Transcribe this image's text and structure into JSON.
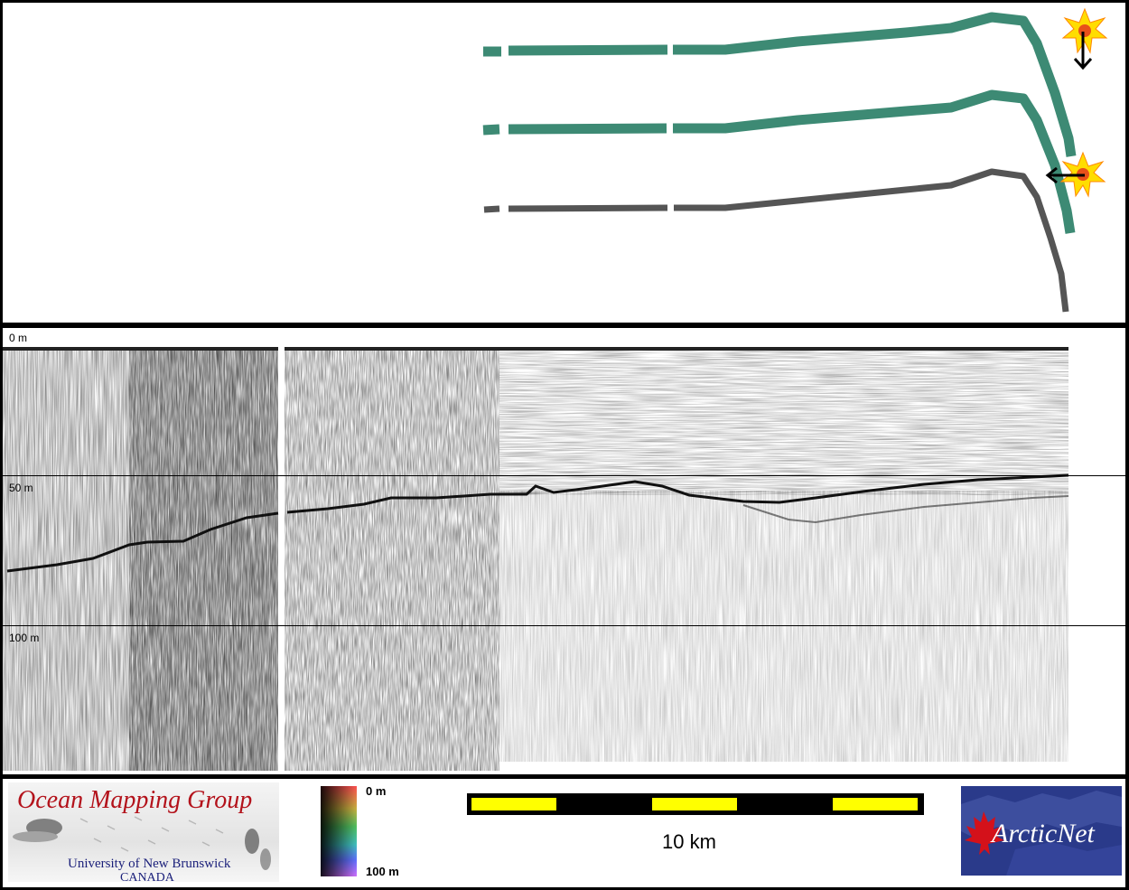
{
  "depth_labels": {
    "surface": "0 m",
    "mid": "50 m",
    "deep": "100 m"
  },
  "color_scale": {
    "top_label": "0 m",
    "bottom_label": "100 m"
  },
  "scale_bar": {
    "label": "10 km"
  },
  "logos": {
    "ocean_mapping": {
      "title": "Ocean Mapping Group",
      "line1": "University of New Brunswick",
      "line2": "CANADA"
    },
    "arcticnet": {
      "name": "ArcticNet"
    }
  },
  "colors": {
    "swath_track": "#3d8a74",
    "profile_track": "#555555",
    "seafloor_reflector": "#111111",
    "scale_yellow": "#ffff00",
    "omg_red": "#b3121b",
    "omg_blue": "#1a1f7a",
    "arctic_blue": "#2a3a8a"
  },
  "icons": [
    "sun-icon",
    "arrow-down-icon",
    "arrow-left-icon",
    "maple-leaf-icon"
  ]
}
